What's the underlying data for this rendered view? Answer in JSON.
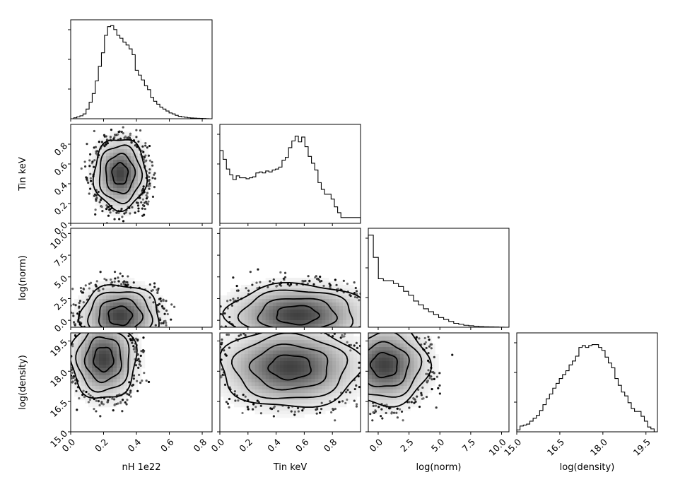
{
  "chart_data": {
    "type": "corner",
    "parameters": [
      "nH 1e22",
      "Tin keV",
      "log(norm)",
      "log(density)"
    ],
    "axes": {
      "nH 1e22": {
        "range": [
          0.0,
          0.86
        ],
        "ticks": [
          "0.0",
          "0.2",
          "0.4",
          "0.6",
          "0.8"
        ],
        "tick_values": [
          0.0,
          0.2,
          0.4,
          0.6,
          0.8
        ]
      },
      "Tin keV": {
        "range": [
          0.0,
          1.0
        ],
        "ticks": [
          "0.0",
          "0.2",
          "0.4",
          "0.6",
          "0.8"
        ],
        "tick_values": [
          0.0,
          0.2,
          0.4,
          0.6,
          0.8
        ]
      },
      "log(norm)": {
        "range": [
          -0.8,
          10.6
        ],
        "ticks": [
          "0.0",
          "2.5",
          "5.0",
          "7.5",
          "10.0"
        ],
        "tick_values": [
          0.0,
          2.5,
          5.0,
          7.5,
          10.0
        ]
      },
      "log(density)": {
        "range": [
          15.0,
          19.9
        ],
        "ticks": [
          "15.0",
          "16.5",
          "18.0",
          "19.5"
        ],
        "tick_values": [
          15.0,
          16.5,
          18.0,
          19.5
        ]
      }
    },
    "marginals": [
      {
        "param": "nH 1e22",
        "bins": [
          0.0,
          0.86
        ],
        "heights": [
          0.0,
          0.01,
          0.02,
          0.03,
          0.05,
          0.1,
          0.17,
          0.26,
          0.39,
          0.54,
          0.68,
          0.86,
          0.95,
          0.96,
          0.92,
          0.86,
          0.83,
          0.79,
          0.76,
          0.72,
          0.66,
          0.5,
          0.45,
          0.4,
          0.34,
          0.3,
          0.22,
          0.18,
          0.15,
          0.12,
          0.1,
          0.08,
          0.06,
          0.05,
          0.035,
          0.025,
          0.02,
          0.015,
          0.01,
          0.008,
          0.006,
          0.004,
          0.003,
          0.002,
          0.001,
          0.0
        ]
      },
      {
        "param": "Tin keV",
        "bins": [
          0.0,
          1.0
        ],
        "heights": [
          0.75,
          0.66,
          0.56,
          0.5,
          0.45,
          0.49,
          0.47,
          0.47,
          0.46,
          0.47,
          0.48,
          0.52,
          0.53,
          0.52,
          0.54,
          0.53,
          0.55,
          0.56,
          0.58,
          0.65,
          0.68,
          0.78,
          0.85,
          0.9,
          0.84,
          0.89,
          0.79,
          0.69,
          0.62,
          0.55,
          0.42,
          0.35,
          0.3,
          0.3,
          0.25,
          0.17,
          0.11,
          0.06,
          0.06,
          0.06,
          0.06,
          0.06,
          0.06
        ]
      },
      {
        "param": "log(norm)",
        "bins": [
          -0.8,
          10.6
        ],
        "heights": [
          0.95,
          0.72,
          0.5,
          0.48,
          0.48,
          0.45,
          0.42,
          0.37,
          0.33,
          0.27,
          0.23,
          0.19,
          0.16,
          0.13,
          0.1,
          0.08,
          0.06,
          0.04,
          0.03,
          0.02,
          0.015,
          0.01,
          0.006,
          0.004,
          0.003,
          0.002,
          0.001,
          0.0
        ]
      },
      {
        "param": "log(density)",
        "bins": [
          15.0,
          19.9
        ],
        "heights": [
          0.02,
          0.06,
          0.07,
          0.08,
          0.11,
          0.14,
          0.17,
          0.22,
          0.28,
          0.34,
          0.39,
          0.45,
          0.5,
          0.55,
          0.59,
          0.63,
          0.69,
          0.73,
          0.78,
          0.87,
          0.89,
          0.87,
          0.89,
          0.9,
          0.9,
          0.87,
          0.84,
          0.77,
          0.71,
          0.66,
          0.55,
          0.48,
          0.41,
          0.37,
          0.3,
          0.24,
          0.21,
          0.21,
          0.16,
          0.11,
          0.05,
          0.03,
          0.0
        ]
      }
    ],
    "joint": [
      {
        "x": "nH 1e22",
        "y": "Tin keV",
        "peak": [
          0.3,
          0.5
        ],
        "spread": [
          0.08,
          0.18
        ],
        "contour_levels": 4
      },
      {
        "x": "nH 1e22",
        "y": "log(norm)",
        "peak": [
          0.3,
          0.5
        ],
        "spread": [
          0.12,
          1.8
        ],
        "contour_levels": 4
      },
      {
        "x": "Tin keV",
        "y": "log(norm)",
        "peak": [
          0.55,
          0.6
        ],
        "spread": [
          0.25,
          1.8
        ],
        "contour_levels": 4
      },
      {
        "x": "nH 1e22",
        "y": "log(density)",
        "peak": [
          0.2,
          18.6
        ],
        "spread": [
          0.1,
          1.0
        ],
        "contour_levels": 4
      },
      {
        "x": "Tin keV",
        "y": "log(density)",
        "peak": [
          0.5,
          18.2
        ],
        "spread": [
          0.25,
          1.0
        ],
        "contour_levels": 4
      },
      {
        "x": "log(norm)",
        "y": "log(density)",
        "peak": [
          0.5,
          18.3
        ],
        "spread": [
          1.8,
          1.0
        ],
        "contour_levels": 4
      }
    ],
    "grid": false,
    "legend": "none"
  }
}
